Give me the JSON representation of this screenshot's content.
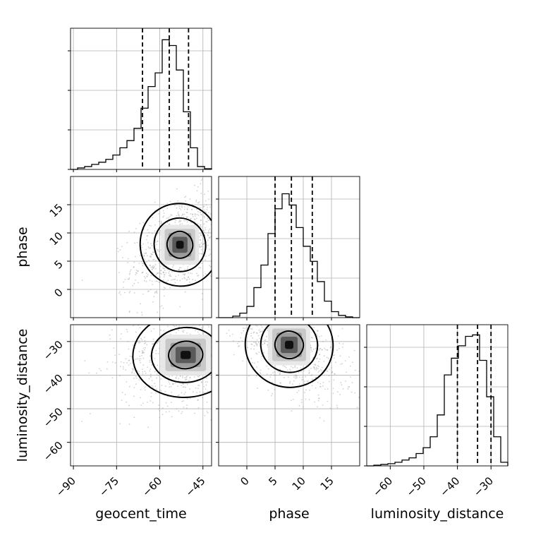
{
  "chart_data": {
    "type": "corner",
    "parameters": [
      {
        "name": "geocent_time",
        "range": [
          -91,
          -42
        ],
        "ticks": [
          -90,
          -75,
          -60,
          -45
        ],
        "tick_labels": [
          "−90",
          "−75",
          "−60",
          "−45"
        ]
      },
      {
        "name": "phase",
        "range": [
          -5,
          20
        ],
        "ticks": [
          0,
          5,
          10,
          15
        ],
        "tick_labels": [
          "0",
          "5",
          "10",
          "15"
        ]
      },
      {
        "name": "luminosity_distance",
        "range": [
          -67,
          -25
        ],
        "ticks": [
          -60,
          -50,
          -40,
          -30
        ],
        "tick_labels": [
          "−60",
          "−50",
          "−40",
          "−30"
        ]
      }
    ],
    "axis_labels": {
      "x": [
        "geocent_time",
        "phase",
        "luminosity_distance"
      ],
      "y": [
        "",
        "phase",
        "luminosity_distance"
      ]
    },
    "grid": true,
    "histograms": [
      {
        "parameter": "geocent_time",
        "bin_edges": [
          -91,
          -88.55,
          -86.1,
          -83.65,
          -81.2,
          -78.75,
          -76.3,
          -73.85,
          -71.4,
          -68.95,
          -66.5,
          -64.05,
          -61.6,
          -59.15,
          -56.7,
          -54.25,
          -51.8,
          -49.35,
          -46.9,
          -44.45,
          -42
        ],
        "counts": [
          0,
          2,
          4,
          7,
          10,
          14,
          20,
          30,
          40,
          57,
          85,
          115,
          134,
          180,
          172,
          138,
          80,
          30,
          4,
          1
        ],
        "quantiles": [
          -66,
          -56.7,
          -50
        ],
        "ymax": 196
      },
      {
        "parameter": "phase",
        "bin_edges": [
          -5,
          -3.75,
          -2.5,
          -1.25,
          0,
          1.25,
          2.5,
          3.75,
          5,
          6.25,
          7.5,
          8.75,
          10,
          11.25,
          12.5,
          13.75,
          15,
          16.25,
          17.5,
          18.75,
          20
        ],
        "counts": [
          0,
          0,
          2,
          6,
          15,
          40,
          70,
          112,
          145,
          165,
          150,
          120,
          95,
          75,
          48,
          22,
          8,
          3,
          1,
          0
        ],
        "quantiles": [
          5,
          7.9,
          11.6
        ],
        "ymax": 188
      },
      {
        "parameter": "luminosity_distance",
        "bin_edges": [
          -67,
          -64.9,
          -62.8,
          -60.7,
          -58.6,
          -56.5,
          -54.4,
          -52.3,
          -50.2,
          -48.1,
          -46,
          -43.9,
          -41.8,
          -39.7,
          -37.6,
          -35.5,
          -33.4,
          -31.3,
          -29.2,
          -27.1,
          -25
        ],
        "counts": [
          0,
          1,
          2,
          3,
          5,
          8,
          11,
          17,
          25,
          40,
          70,
          125,
          148,
          165,
          178,
          180,
          145,
          95,
          40,
          5
        ],
        "quantiles": [
          -40,
          -34,
          -30
        ],
        "ymax": 194
      }
    ],
    "pair_panels": [
      {
        "x": "geocent_time",
        "y": "phase",
        "center": [
          -53,
          7.9
        ],
        "contour_levels": 3
      },
      {
        "x": "geocent_time",
        "y": "luminosity_distance",
        "center": [
          -51,
          -34
        ],
        "contour_levels": 3
      },
      {
        "x": "phase",
        "y": "luminosity_distance",
        "center": [
          7.5,
          -31
        ],
        "contour_levels": 3
      }
    ]
  }
}
